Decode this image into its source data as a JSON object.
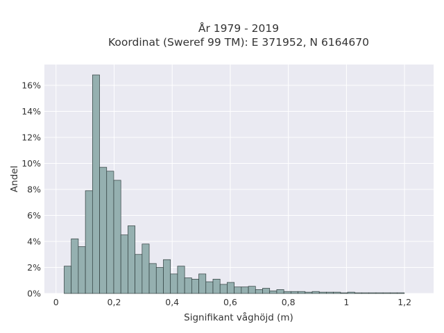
{
  "chart_data": {
    "type": "bar",
    "title": "År 1979 - 2019",
    "subtitle": "Koordinat (Sweref 99 TM): E 371952, N 6164670",
    "xlabel": "Signifikant våghöjd (m)",
    "ylabel": "Andel",
    "xlim": [
      -0.04,
      1.3
    ],
    "ylim": [
      0,
      17.6
    ],
    "x_ticks": [
      0,
      0.2,
      0.4,
      0.6,
      0.8,
      1.0,
      1.2
    ],
    "x_tick_labels": [
      "0",
      "0,2",
      "0,4",
      "0,6",
      "0,8",
      "1",
      "1,2"
    ],
    "y_ticks": [
      0,
      2,
      4,
      6,
      8,
      10,
      12,
      14,
      16
    ],
    "y_tick_labels": [
      "0%",
      "2%",
      "4%",
      "6%",
      "8%",
      "10%",
      "12%",
      "14%",
      "16%"
    ],
    "bin_width": 0.0244,
    "bin_starts": [
      0.028,
      0.0524,
      0.0768,
      0.1012,
      0.1256,
      0.15,
      0.1744,
      0.1988,
      0.2232,
      0.2476,
      0.272,
      0.2964,
      0.3208,
      0.3452,
      0.3696,
      0.394,
      0.4184,
      0.4428,
      0.4672,
      0.4916,
      0.516,
      0.5404,
      0.5648,
      0.5892,
      0.6136,
      0.638,
      0.6624,
      0.6868,
      0.7112,
      0.7356,
      0.76,
      0.7844,
      0.8088,
      0.8332,
      0.8576,
      0.882,
      0.9064,
      0.9308,
      0.9552,
      0.9796,
      1.004,
      1.0284,
      1.0528,
      1.0772,
      1.1016,
      1.126,
      1.1504,
      1.1748
    ],
    "values": [
      2.1,
      4.2,
      3.6,
      7.9,
      16.8,
      9.7,
      9.4,
      8.7,
      4.5,
      5.2,
      3.0,
      3.8,
      2.3,
      2.0,
      2.6,
      1.5,
      2.1,
      1.2,
      1.1,
      1.5,
      0.9,
      1.1,
      0.7,
      0.85,
      0.5,
      0.5,
      0.55,
      0.3,
      0.4,
      0.2,
      0.3,
      0.15,
      0.15,
      0.15,
      0.1,
      0.15,
      0.1,
      0.1,
      0.1,
      0.05,
      0.1,
      0.05,
      0.05,
      0.05,
      0.05,
      0.05,
      0.05,
      0.05
    ],
    "colors": {
      "background": "#eaeaf2",
      "bar_fill": "#95b0b0",
      "bar_edge": "#2f3d3d",
      "grid": "#ffffff"
    },
    "grid": true
  }
}
